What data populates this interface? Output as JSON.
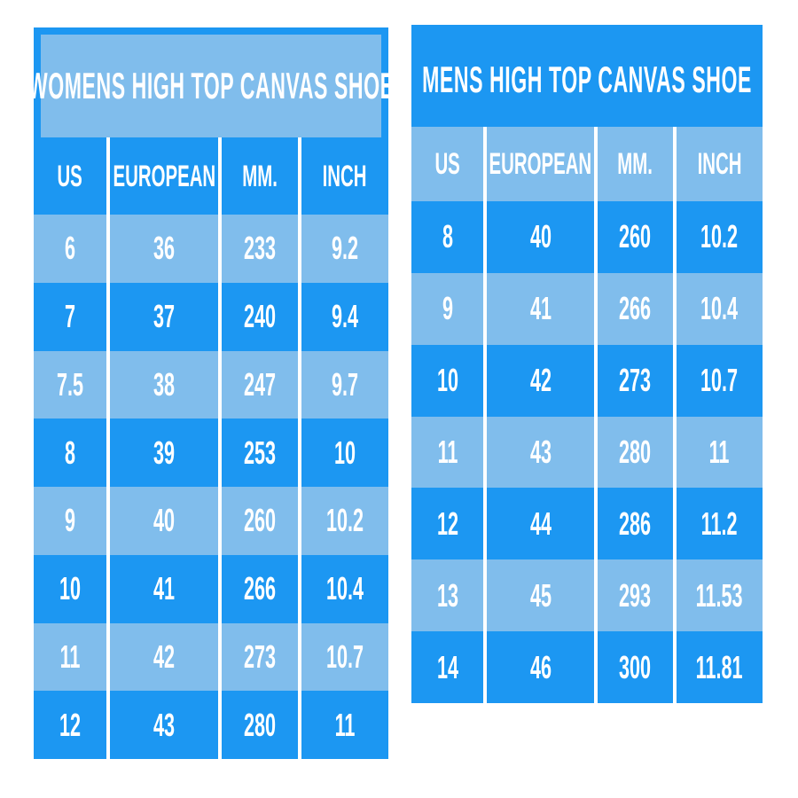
{
  "colors": {
    "dark_blue": "#1c97f2",
    "light_blue": "#80bdec",
    "separator": "#ffffff",
    "text": "#ffffff"
  },
  "chart_data": [
    {
      "type": "table",
      "id": "womens",
      "title": "WOMENS HIGH TOP CANVAS SHOE",
      "title_shade": "light",
      "header_shade": "dark",
      "first_row_shade": "light",
      "columns": [
        "US",
        "EUROPEAN",
        "MM.",
        "INCH"
      ],
      "rows": [
        [
          "6",
          "36",
          "233",
          "9.2"
        ],
        [
          "7",
          "37",
          "240",
          "9.4"
        ],
        [
          "7.5",
          "38",
          "247",
          "9.7"
        ],
        [
          "8",
          "39",
          "253",
          "10"
        ],
        [
          "9",
          "40",
          "260",
          "10.2"
        ],
        [
          "10",
          "41",
          "266",
          "10.4"
        ],
        [
          "11",
          "42",
          "273",
          "10.7"
        ],
        [
          "12",
          "43",
          "280",
          "11"
        ]
      ]
    },
    {
      "type": "table",
      "id": "mens",
      "title": "MENS HIGH TOP CANVAS SHOE",
      "title_shade": "dark",
      "header_shade": "light",
      "first_row_shade": "dark",
      "columns": [
        "US",
        "EUROPEAN",
        "MM.",
        "INCH"
      ],
      "rows": [
        [
          "8",
          "40",
          "260",
          "10.2"
        ],
        [
          "9",
          "41",
          "266",
          "10.4"
        ],
        [
          "10",
          "42",
          "273",
          "10.7"
        ],
        [
          "11",
          "43",
          "280",
          "11"
        ],
        [
          "12",
          "44",
          "286",
          "11.2"
        ],
        [
          "13",
          "45",
          "293",
          "11.53"
        ],
        [
          "14",
          "46",
          "300",
          "11.81"
        ]
      ]
    }
  ]
}
